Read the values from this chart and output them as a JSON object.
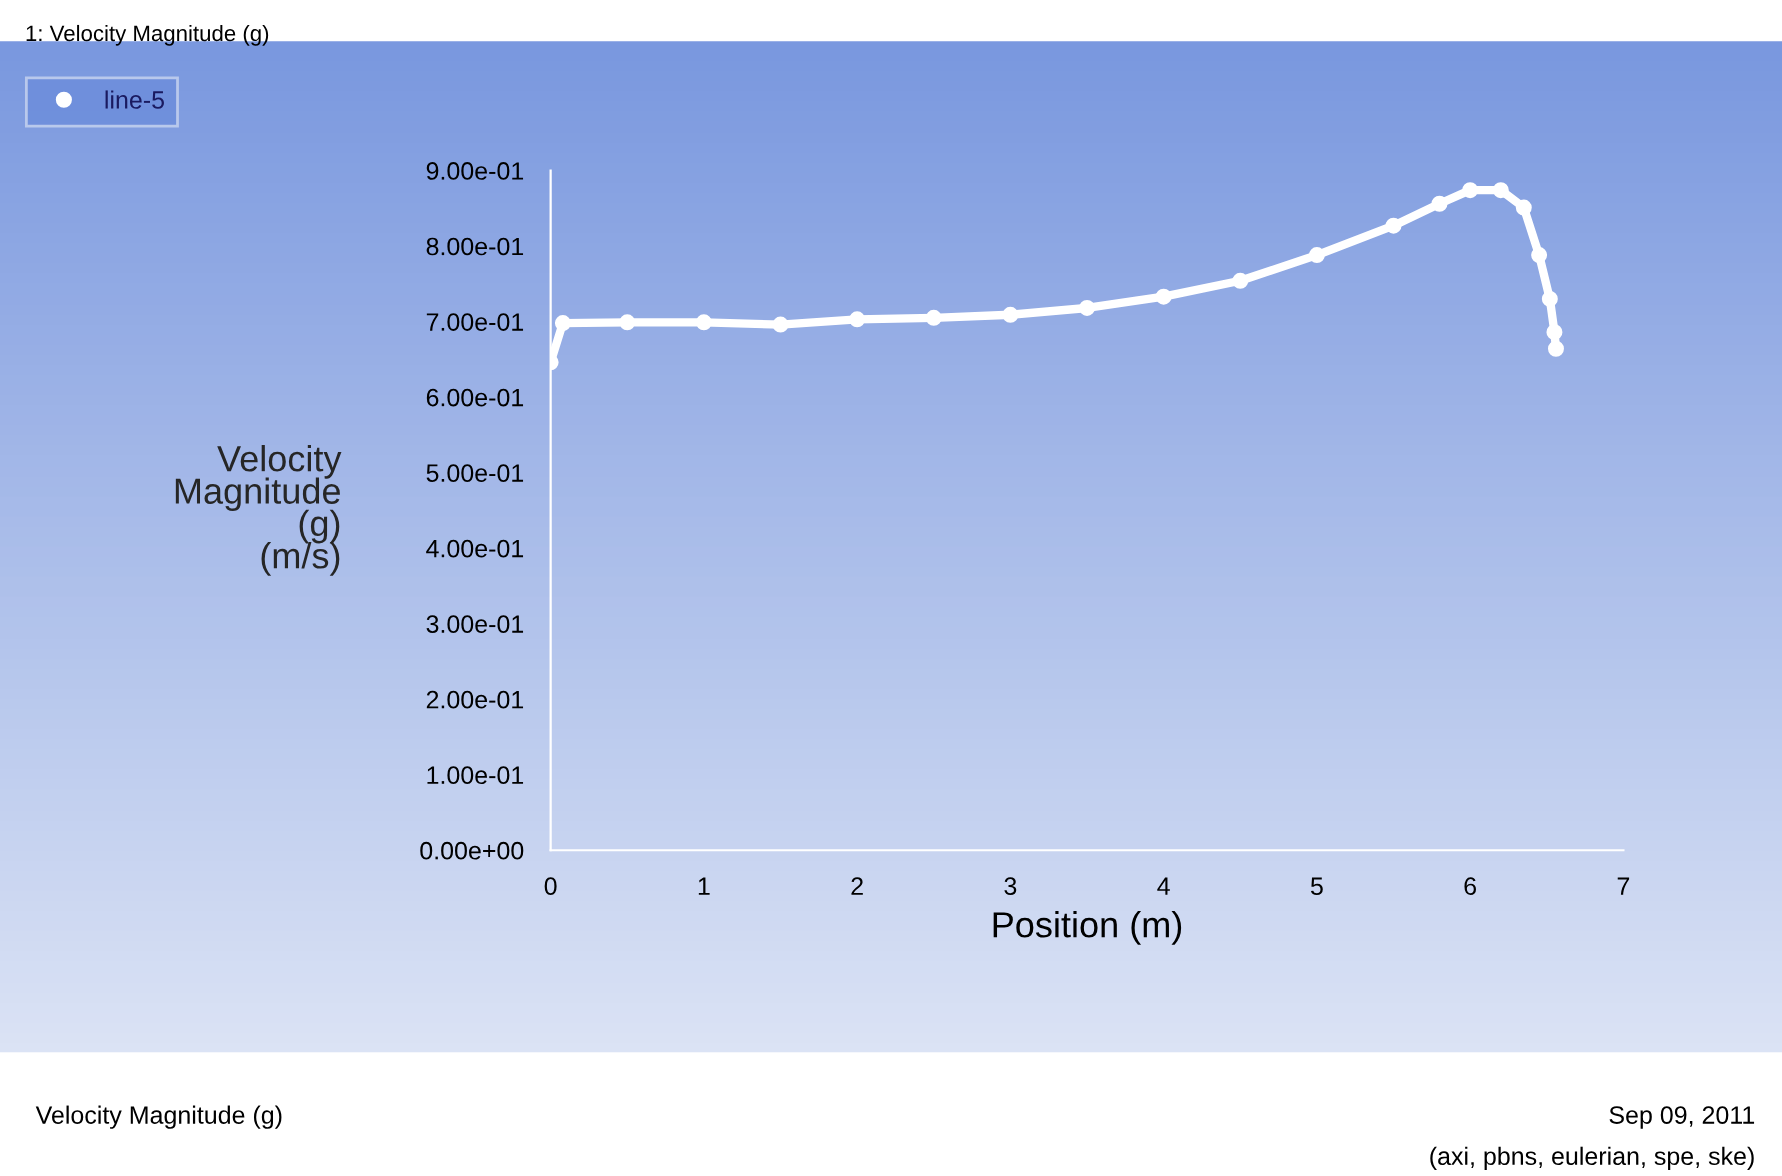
{
  "chart_data": {
    "type": "line",
    "xlabel": "Position (m)",
    "ylabel": "Velocity\nMagnitude\n(g)\n(m/s)",
    "x": [
      0,
      0.08,
      0.5,
      1.0,
      1.5,
      2.0,
      2.5,
      3.0,
      3.5,
      4.0,
      4.5,
      5.0,
      5.5,
      5.8,
      6.0,
      6.2,
      6.35,
      6.45,
      6.52,
      6.55,
      6.56
    ],
    "series": [
      {
        "name": "line-5",
        "color": "#ffffff",
        "values": [
          0.646,
          0.698,
          0.699,
          0.699,
          0.696,
          0.703,
          0.705,
          0.709,
          0.718,
          0.733,
          0.754,
          0.788,
          0.827,
          0.856,
          0.874,
          0.874,
          0.851,
          0.788,
          0.73,
          0.686,
          0.664
        ]
      }
    ],
    "xlim": [
      0,
      7
    ],
    "ylim": [
      0,
      0.9
    ],
    "xticks": [
      0,
      1,
      2,
      3,
      4,
      5,
      6,
      7
    ],
    "yticks": [
      {
        "value": 0,
        "label": "0.00e+00"
      },
      {
        "value": 0.1,
        "label": "1.00e-01"
      },
      {
        "value": 0.2,
        "label": "2.00e-01"
      },
      {
        "value": 0.3,
        "label": "3.00e-01"
      },
      {
        "value": 0.4,
        "label": "4.00e-01"
      },
      {
        "value": 0.5,
        "label": "5.00e-01"
      },
      {
        "value": 0.6,
        "label": "6.00e-01"
      },
      {
        "value": 0.7,
        "label": "7.00e-01"
      },
      {
        "value": 0.8,
        "label": "8.00e-01"
      },
      {
        "value": 0.9,
        "label": "9.00e-01"
      }
    ],
    "marker": "circle",
    "grid": false,
    "legend": "top left",
    "annotations": [
      "1: Velocity Magnitude (g)",
      "Velocity Magnitude (g)",
      "Sep 09, 2011",
      "(axi, pbns, eulerian, spe, ske)"
    ]
  }
}
